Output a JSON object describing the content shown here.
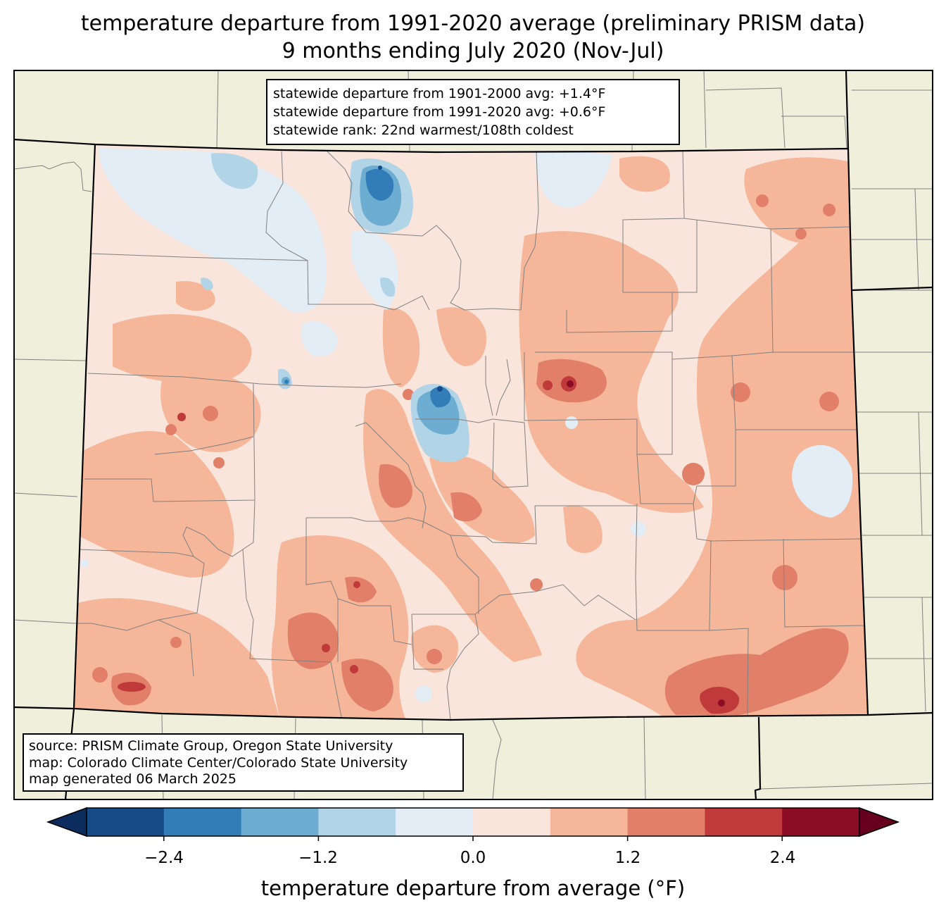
{
  "title": {
    "line1": "temperature departure from 1991-2020 average (preliminary PRISM data)",
    "line2": "9 months ending July 2020 (Nov-Jul)"
  },
  "stats": {
    "line1": "statewide departure from 1901-2000 avg: +1.4°F",
    "line2": "statewide departure from 1991-2020 avg: +0.6°F",
    "line3": "statewide rank: 22nd warmest/108th coldest"
  },
  "source": {
    "line1": "source: PRISM Climate Group, Oregon State University",
    "line2": "map: Colorado Climate Center/Colorado State University",
    "line3": "map generated 06 March 2025"
  },
  "colorbar": {
    "label": "temperature departure from average (°F)",
    "ticks": [
      "−2.4",
      "−1.2",
      "0.0",
      "1.2",
      "2.4"
    ],
    "bins": [
      {
        "max": -2.4,
        "color": "#154b87"
      },
      {
        "max": -1.8,
        "color": "#327db7"
      },
      {
        "max": -1.2,
        "color": "#6cadd1"
      },
      {
        "max": -0.6,
        "color": "#b2d4e7"
      },
      {
        "max": 0.0,
        "color": "#e3edf5"
      },
      {
        "max": 0.6,
        "color": "#f9e5dc"
      },
      {
        "max": 1.2,
        "color": "#f5b69a"
      },
      {
        "max": 1.8,
        "color": "#e27f69"
      },
      {
        "max": 2.4,
        "color": "#c0393b"
      },
      {
        "max": 3.0,
        "color": "#8a0c25"
      }
    ],
    "under_color": "#0b2c5c",
    "over_color": "#67001f"
  },
  "colors": {
    "land": "#f0efdc",
    "state_border": "#000000",
    "county_border": "#808080"
  }
}
